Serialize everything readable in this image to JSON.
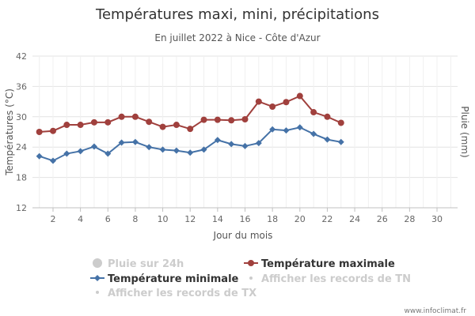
{
  "chart_data": {
    "type": "line",
    "title": "Températures maxi, mini, précipitations",
    "subtitle": "En juillet 2022 à Nice - Côte d'Azur",
    "xlabel": "Jour du mois",
    "ylabel_left": "Températures (°C)",
    "ylabel_right": "Pluie (mm)",
    "xlim": [
      0.5,
      31.5
    ],
    "xticks": [
      2,
      4,
      6,
      8,
      10,
      12,
      14,
      16,
      18,
      20,
      22,
      24,
      26,
      28,
      30
    ],
    "ylim": [
      12,
      42
    ],
    "yticks": [
      12,
      18,
      24,
      30,
      36,
      42
    ],
    "grid": true,
    "legend_position": "bottom",
    "x": [
      1,
      2,
      3,
      4,
      5,
      6,
      7,
      8,
      9,
      10,
      11,
      12,
      13,
      14,
      15,
      16,
      17,
      18,
      19,
      20,
      21,
      22,
      23
    ],
    "series": [
      {
        "name": "Température maximale",
        "color": "#a0403d",
        "marker": "circle",
        "values": [
          27.0,
          27.2,
          28.4,
          28.4,
          28.9,
          28.9,
          30.0,
          30.0,
          29.0,
          28.0,
          28.4,
          27.6,
          29.4,
          29.4,
          29.3,
          29.5,
          33.0,
          32.0,
          32.9,
          34.1,
          30.9,
          30.0,
          28.8
        ]
      },
      {
        "name": "Température minimale",
        "color": "#4572a7",
        "marker": "diamond",
        "values": [
          22.2,
          21.3,
          22.7,
          23.2,
          24.1,
          22.7,
          24.9,
          25.0,
          24.0,
          23.5,
          23.3,
          22.9,
          23.5,
          25.4,
          24.6,
          24.2,
          24.8,
          27.5,
          27.3,
          27.9,
          26.6,
          25.5,
          25.0
        ]
      }
    ],
    "legend_items": [
      {
        "label": "Pluie sur 24h",
        "color": "#cccccc",
        "marker": "circle",
        "hidden": true
      },
      {
        "label": "Température maximale",
        "color": "#a0403d",
        "marker": "circle-line",
        "hidden": false
      },
      {
        "label": "Température minimale",
        "color": "#4572a7",
        "marker": "diamond-line",
        "hidden": false
      },
      {
        "label": "Afficher les records de TN",
        "color": "#cccccc",
        "marker": "dot",
        "hidden": true
      },
      {
        "label": "Afficher les records de TX",
        "color": "#cccccc",
        "marker": "dot",
        "hidden": true
      }
    ]
  },
  "credit": "www.infoclimat.fr"
}
